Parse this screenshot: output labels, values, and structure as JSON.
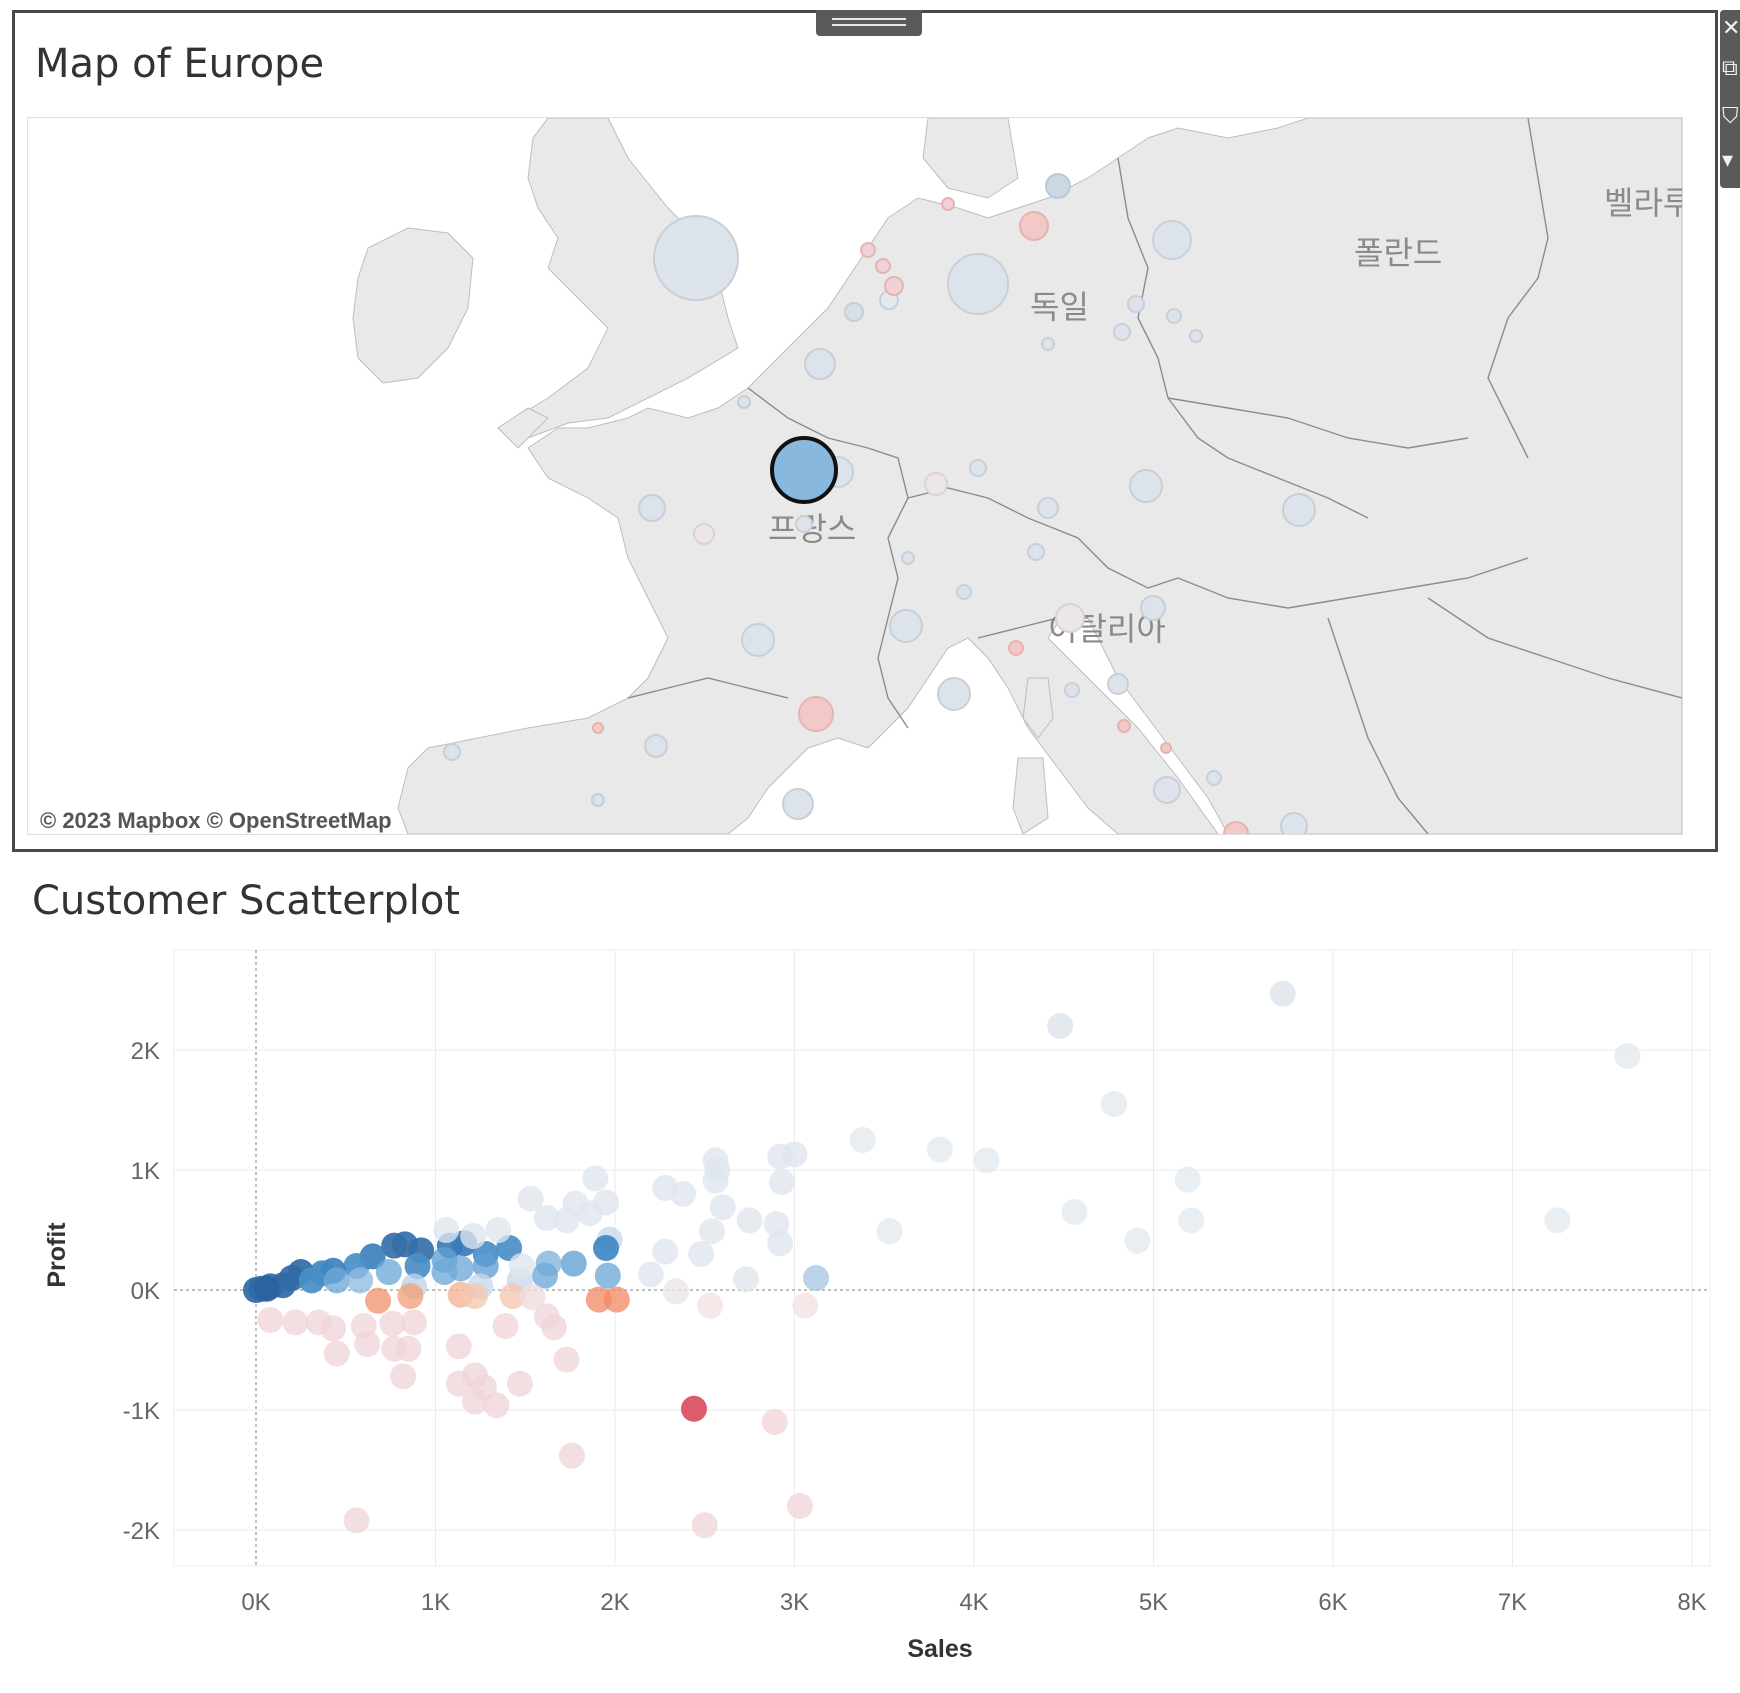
{
  "map_zone": {
    "title": "Map of Europe",
    "attribution": "© 2023 Mapbox © OpenStreetMap",
    "country_labels": [
      "독일",
      "프랑스",
      "이탈리아",
      "폴란드",
      "벨라루"
    ],
    "highlighted_marker": "selected-circle",
    "toolbar": {
      "close_icon": "close-icon",
      "goto_sheet_icon": "goto-sheet-icon",
      "filter_icon": "filter-icon",
      "more_options_icon": "more-options-icon"
    },
    "colors": {
      "land": "#e9e9e9",
      "border": "#8c8c8c",
      "selected_fill": "#88b8dd",
      "selected_stroke": "#111111"
    }
  },
  "scatter_zone": {
    "title": "Customer Scatterplot"
  },
  "chart_data": {
    "type": "scatter",
    "title": "Customer Scatterplot",
    "xlabel": "Sales",
    "ylabel": "Profit",
    "xlim": [
      -450,
      8100
    ],
    "ylim": [
      -2300,
      2800
    ],
    "x_ticks": [
      0,
      1000,
      2000,
      3000,
      4000,
      5000,
      6000,
      7000,
      8000
    ],
    "x_tick_labels": [
      "0K",
      "1K",
      "2K",
      "3K",
      "4K",
      "5K",
      "6K",
      "7K",
      "8K"
    ],
    "y_ticks": [
      -2000,
      -1000,
      0,
      1000,
      2000
    ],
    "y_tick_labels": [
      "-2K",
      "-1K",
      "0K",
      "1K",
      "2K"
    ],
    "grid": true,
    "color_encoding": "diverging blue-red by profit ratio",
    "points": [
      [
        5720,
        2470,
        "#dde3ea"
      ],
      [
        4480,
        2200,
        "#dde3ea"
      ],
      [
        7640,
        1950,
        "#e3e9ef"
      ],
      [
        4780,
        1550,
        "#e3e9ef"
      ],
      [
        3380,
        1250,
        "#e3e9ef"
      ],
      [
        3810,
        1170,
        "#e3e9ef"
      ],
      [
        4070,
        1080,
        "#e3e9ef"
      ],
      [
        5190,
        920,
        "#e3e9ef"
      ],
      [
        4560,
        650,
        "#e3e9ef"
      ],
      [
        5210,
        580,
        "#e3e9ef"
      ],
      [
        7250,
        580,
        "#e3e9ef"
      ],
      [
        3530,
        490,
        "#e3e9ef"
      ],
      [
        4910,
        410,
        "#e3e9ef"
      ],
      [
        3000,
        1130,
        "#dfe6ee"
      ],
      [
        2920,
        1110,
        "#dfe6ee"
      ],
      [
        2560,
        1080,
        "#dfe6ee"
      ],
      [
        2570,
        1000,
        "#dfe6ee"
      ],
      [
        2560,
        910,
        "#dfe6ee"
      ],
      [
        2280,
        850,
        "#dfe6ee"
      ],
      [
        2380,
        800,
        "#dfe6ee"
      ],
      [
        2930,
        900,
        "#dfe6ee"
      ],
      [
        2600,
        690,
        "#dfe6ee"
      ],
      [
        2750,
        580,
        "#dfe6ee"
      ],
      [
        2900,
        550,
        "#dfe6ee"
      ],
      [
        2920,
        390,
        "#dfe6ee"
      ],
      [
        2540,
        490,
        "#dfe6ee"
      ],
      [
        2480,
        300,
        "#dfe6ee"
      ],
      [
        2280,
        320,
        "#dfe6ee"
      ],
      [
        1890,
        930,
        "#dfe6ee"
      ],
      [
        1950,
        730,
        "#dfe6ee"
      ],
      [
        1530,
        760,
        "#dfe6ee"
      ],
      [
        1780,
        720,
        "#dfe6ee"
      ],
      [
        2730,
        90,
        "#dfe6ee"
      ],
      [
        2200,
        130,
        "#dfe6ee"
      ],
      [
        2340,
        -10,
        "#ece6e6"
      ],
      [
        1970,
        420,
        "#c8d9ea"
      ],
      [
        1950,
        350,
        "#3f88c5"
      ],
      [
        1960,
        120,
        "#6ea9d8"
      ],
      [
        1770,
        220,
        "#5f9fd2"
      ],
      [
        1630,
        220,
        "#7fb3dc"
      ],
      [
        1610,
        120,
        "#6ea9d8"
      ],
      [
        3120,
        100,
        "#a8c7e2"
      ],
      [
        1410,
        350,
        "#4a8ec8"
      ],
      [
        1160,
        390,
        "#3a7cb8"
      ],
      [
        1080,
        370,
        "#3a7cb8"
      ],
      [
        1280,
        300,
        "#4a8ec8"
      ],
      [
        1280,
        200,
        "#5f9fd2"
      ],
      [
        1050,
        250,
        "#5f9fd2"
      ],
      [
        920,
        330,
        "#346fa8"
      ],
      [
        830,
        380,
        "#346fa8"
      ],
      [
        770,
        370,
        "#346fa8"
      ],
      [
        650,
        280,
        "#3d80bc"
      ],
      [
        560,
        200,
        "#4a8ec8"
      ],
      [
        740,
        150,
        "#6ea9d8"
      ],
      [
        900,
        200,
        "#4a8ec8"
      ],
      [
        1050,
        150,
        "#6ea9d8"
      ],
      [
        1140,
        180,
        "#6ea9d8"
      ],
      [
        430,
        160,
        "#3d80bc"
      ],
      [
        370,
        140,
        "#3f88c5"
      ],
      [
        250,
        150,
        "#2f6aa5"
      ],
      [
        200,
        100,
        "#2f6aa5"
      ],
      [
        150,
        40,
        "#2f6aa5"
      ],
      [
        80,
        30,
        "#2f6aa5"
      ],
      [
        30,
        10,
        "#2f6aa5"
      ],
      [
        0,
        0,
        "#2f6aa5"
      ],
      [
        60,
        10,
        "#2a64a0"
      ],
      [
        310,
        80,
        "#4a8ec8"
      ],
      [
        450,
        80,
        "#6ea9d8"
      ],
      [
        580,
        80,
        "#8fbde2"
      ],
      [
        880,
        30,
        "#bcd3e8"
      ],
      [
        1250,
        30,
        "#c8d9ea"
      ],
      [
        1470,
        80,
        "#c8d9ea"
      ],
      [
        1480,
        200,
        "#dfe6ee"
      ],
      [
        1350,
        500,
        "#dfe6ee"
      ],
      [
        1210,
        450,
        "#dfe6ee"
      ],
      [
        1060,
        500,
        "#dfe6ee"
      ],
      [
        1620,
        600,
        "#dfe6ee"
      ],
      [
        1730,
        580,
        "#dfe6ee"
      ],
      [
        1860,
        640,
        "#dfe6ee"
      ],
      [
        680,
        -90,
        "#f0956e"
      ],
      [
        860,
        -50,
        "#f2a07c"
      ],
      [
        1140,
        -40,
        "#f4b294"
      ],
      [
        1910,
        -80,
        "#f28c68"
      ],
      [
        2010,
        -80,
        "#f28c68"
      ],
      [
        1220,
        -50,
        "#f6c6b0"
      ],
      [
        1430,
        -50,
        "#f6c6b0"
      ],
      [
        2530,
        -130,
        "#f5e0e0"
      ],
      [
        3060,
        -130,
        "#f5e0e0"
      ],
      [
        1540,
        -60,
        "#efdcdc"
      ],
      [
        1620,
        -220,
        "#efd5da"
      ],
      [
        1660,
        -310,
        "#efd5da"
      ],
      [
        1730,
        -580,
        "#efd5da"
      ],
      [
        1390,
        -300,
        "#efd5da"
      ],
      [
        1130,
        -470,
        "#efd5da"
      ],
      [
        1220,
        -710,
        "#efd5da"
      ],
      [
        1130,
        -780,
        "#efd5da"
      ],
      [
        1270,
        -810,
        "#efd5da"
      ],
      [
        1470,
        -780,
        "#efd5da"
      ],
      [
        1220,
        -930,
        "#efd5da"
      ],
      [
        1340,
        -960,
        "#efd5da"
      ],
      [
        850,
        -490,
        "#efd5da"
      ],
      [
        770,
        -490,
        "#efd5da"
      ],
      [
        820,
        -720,
        "#efd5da"
      ],
      [
        450,
        -530,
        "#efd5da"
      ],
      [
        620,
        -450,
        "#efd5da"
      ],
      [
        880,
        -270,
        "#efd5da"
      ],
      [
        760,
        -280,
        "#efd5da"
      ],
      [
        600,
        -300,
        "#efd5da"
      ],
      [
        430,
        -320,
        "#efd5da"
      ],
      [
        350,
        -270,
        "#efd5da"
      ],
      [
        220,
        -270,
        "#efd5da"
      ],
      [
        80,
        -250,
        "#efd5da"
      ],
      [
        2440,
        -990,
        "#d94d5f"
      ],
      [
        2890,
        -1100,
        "#efd5da"
      ],
      [
        1760,
        -1380,
        "#efd5da"
      ],
      [
        3030,
        -1800,
        "#efd5da"
      ],
      [
        560,
        -1920,
        "#efd5da"
      ],
      [
        2500,
        -1960,
        "#efd5da"
      ]
    ]
  }
}
